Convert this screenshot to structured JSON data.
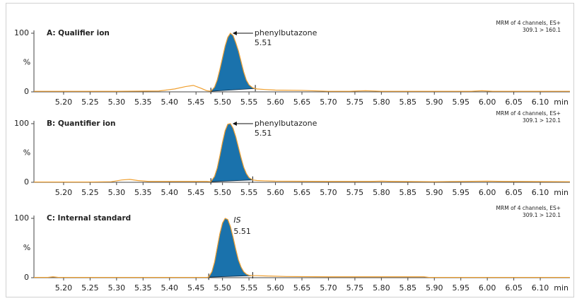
{
  "chart_data": [
    {
      "type": "line",
      "title": "A: Qualifier ion",
      "info": [
        "MRM of 4 channels, ES+",
        "309.1 > 160.1"
      ],
      "annotation": {
        "label": "phenylbutazone",
        "rt": 5.51
      },
      "xlabel": "min",
      "ylabel": "%",
      "x": [
        5.144,
        5.2,
        5.3,
        5.38,
        5.41,
        5.43,
        5.445,
        5.46,
        5.47,
        5.478,
        5.485,
        5.49,
        5.495,
        5.5,
        5.505,
        5.51,
        5.515,
        5.52,
        5.525,
        5.53,
        5.535,
        5.54,
        5.545,
        5.55,
        5.557,
        5.565,
        5.58,
        5.6,
        5.65,
        5.7,
        5.74,
        5.77,
        5.8,
        5.9,
        5.97,
        5.99,
        6.01,
        6.156
      ],
      "series": [
        {
          "color": "#f0a030",
          "values": [
            1,
            1,
            1,
            1.5,
            5,
            9,
            11,
            6,
            2,
            1,
            8,
            20,
            38,
            58,
            78,
            93,
            100,
            96,
            84,
            70,
            52,
            34,
            20,
            12,
            7,
            5,
            4,
            3,
            2.5,
            1,
            1,
            2,
            1,
            1,
            1,
            2,
            1,
            1
          ]
        }
      ],
      "peak": {
        "range": [
          5.478,
          5.562
        ],
        "color": "#1a72ac"
      },
      "xlim": [
        5.144,
        6.156
      ],
      "ylim": [
        0,
        100
      ],
      "yticks": [
        0,
        100
      ],
      "xticks": [
        {
          "value": 5.2,
          "label": "5.20"
        },
        {
          "value": 5.25,
          "label": "5.25"
        },
        {
          "value": 5.3,
          "label": "5.30"
        },
        {
          "value": 5.35,
          "label": "5.35"
        },
        {
          "value": 5.4,
          "label": "5.40"
        },
        {
          "value": 5.45,
          "label": "5.45"
        },
        {
          "value": 5.5,
          "label": "5.50"
        },
        {
          "value": 5.55,
          "label": "5.55"
        },
        {
          "value": 5.6,
          "label": "5.60"
        },
        {
          "value": 5.65,
          "label": "5.65"
        },
        {
          "value": 5.7,
          "label": "5.70"
        },
        {
          "value": 5.75,
          "label": "5.75"
        },
        {
          "value": 5.8,
          "label": "5.80"
        },
        {
          "value": 5.85,
          "label": "5.85"
        },
        {
          "value": 5.9,
          "label": "5.90"
        },
        {
          "value": 5.95,
          "label": "5.95"
        },
        {
          "value": 6.0,
          "label": "6.00"
        },
        {
          "value": 6.05,
          "label": "6.05"
        },
        {
          "value": 6.1,
          "label": "6.10"
        }
      ]
    },
    {
      "type": "line",
      "title": "B: Quantifier ion",
      "info": [
        "MRM of 4 channels, ES+",
        "309.1 > 120.1"
      ],
      "annotation": {
        "label": "phenylbutazone",
        "rt": 5.51
      },
      "xlabel": "min",
      "ylabel": "%",
      "x": [
        5.144,
        5.25,
        5.29,
        5.31,
        5.325,
        5.34,
        5.36,
        5.45,
        5.47,
        5.478,
        5.485,
        5.49,
        5.495,
        5.5,
        5.505,
        5.51,
        5.515,
        5.52,
        5.525,
        5.53,
        5.535,
        5.54,
        5.545,
        5.55,
        5.557,
        5.565,
        5.58,
        5.6,
        5.7,
        5.78,
        5.8,
        5.82,
        5.9,
        6.0,
        6.03,
        6.156
      ],
      "series": [
        {
          "color": "#f0a030",
          "values": [
            0.5,
            0.5,
            1,
            4,
            5,
            3,
            1.5,
            1.5,
            1.5,
            1,
            10,
            24,
            45,
            68,
            88,
            99,
            100,
            92,
            78,
            60,
            42,
            26,
            15,
            8,
            4,
            3,
            2.5,
            2,
            1.5,
            1.5,
            2,
            1.5,
            1,
            2,
            1.5,
            1
          ]
        }
      ],
      "peak": {
        "range": [
          5.478,
          5.557
        ],
        "color": "#1a72ac"
      },
      "xlim": [
        5.144,
        6.156
      ],
      "ylim": [
        0,
        100
      ],
      "yticks": [
        0,
        100
      ],
      "xticks": [
        {
          "value": 5.2,
          "label": "5.20"
        },
        {
          "value": 5.25,
          "label": "5.25"
        },
        {
          "value": 5.3,
          "label": "5.30"
        },
        {
          "value": 5.35,
          "label": "5.35"
        },
        {
          "value": 5.4,
          "label": "5.40"
        },
        {
          "value": 5.45,
          "label": "5.45"
        },
        {
          "value": 5.5,
          "label": "5.50"
        },
        {
          "value": 5.55,
          "label": "5.55"
        },
        {
          "value": 5.6,
          "label": "5.60"
        },
        {
          "value": 5.65,
          "label": "5.65"
        },
        {
          "value": 5.7,
          "label": "5.70"
        },
        {
          "value": 5.75,
          "label": "5.75"
        },
        {
          "value": 5.8,
          "label": "5.80"
        },
        {
          "value": 5.85,
          "label": "5.85"
        },
        {
          "value": 5.9,
          "label": "5.90"
        },
        {
          "value": 5.95,
          "label": "5.95"
        },
        {
          "value": 6.0,
          "label": "6.00"
        },
        {
          "value": 6.05,
          "label": "6.05"
        },
        {
          "value": 6.1,
          "label": "6.10"
        }
      ]
    },
    {
      "type": "line",
      "title": "C: Internal standard",
      "info": [
        "MRM of 4 channels, ES+",
        "309.1 > 120.1"
      ],
      "annotation": {
        "label": "IS",
        "rt": 5.51
      },
      "xlabel": "min",
      "ylabel": "%",
      "x": [
        5.144,
        5.17,
        5.18,
        5.19,
        5.3,
        5.47,
        5.474,
        5.48,
        5.485,
        5.49,
        5.495,
        5.5,
        5.505,
        5.51,
        5.515,
        5.52,
        5.525,
        5.53,
        5.535,
        5.54,
        5.545,
        5.55,
        5.557,
        5.565,
        5.58,
        5.62,
        5.7,
        5.88,
        5.89,
        6.156
      ],
      "series": [
        {
          "color": "#f0a030",
          "values": [
            0.5,
            0.5,
            1.5,
            0.5,
            0.5,
            0.5,
            1,
            10,
            26,
            50,
            74,
            92,
            100,
            98,
            86,
            68,
            48,
            30,
            18,
            10,
            6,
            4,
            3.5,
            3.5,
            3,
            2,
            1.5,
            1.5,
            0.5,
            0.5
          ]
        }
      ],
      "peak": {
        "range": [
          5.474,
          5.557
        ],
        "color": "#1a72ac"
      },
      "xlim": [
        5.144,
        6.156
      ],
      "ylim": [
        0,
        100
      ],
      "yticks": [
        0,
        100
      ],
      "xticks": [
        {
          "value": 5.2,
          "label": "5.20"
        },
        {
          "value": 5.25,
          "label": "5.25"
        },
        {
          "value": 5.3,
          "label": "5.30"
        },
        {
          "value": 5.35,
          "label": "5.35"
        },
        {
          "value": 5.4,
          "label": "5.40"
        },
        {
          "value": 5.45,
          "label": "5.45"
        },
        {
          "value": 5.5,
          "label": "5.50"
        },
        {
          "value": 5.55,
          "label": "5.55"
        },
        {
          "value": 5.6,
          "label": "5.60"
        },
        {
          "value": 5.65,
          "label": "5.65"
        },
        {
          "value": 5.7,
          "label": "5.70"
        },
        {
          "value": 5.75,
          "label": "5.75"
        },
        {
          "value": 5.8,
          "label": "5.80"
        },
        {
          "value": 5.85,
          "label": "5.85"
        },
        {
          "value": 5.9,
          "label": "5.90"
        },
        {
          "value": 5.95,
          "label": "5.95"
        },
        {
          "value": 6.0,
          "label": "6.00"
        },
        {
          "value": 6.05,
          "label": "6.05"
        },
        {
          "value": 6.1,
          "label": "6.10"
        }
      ]
    }
  ]
}
